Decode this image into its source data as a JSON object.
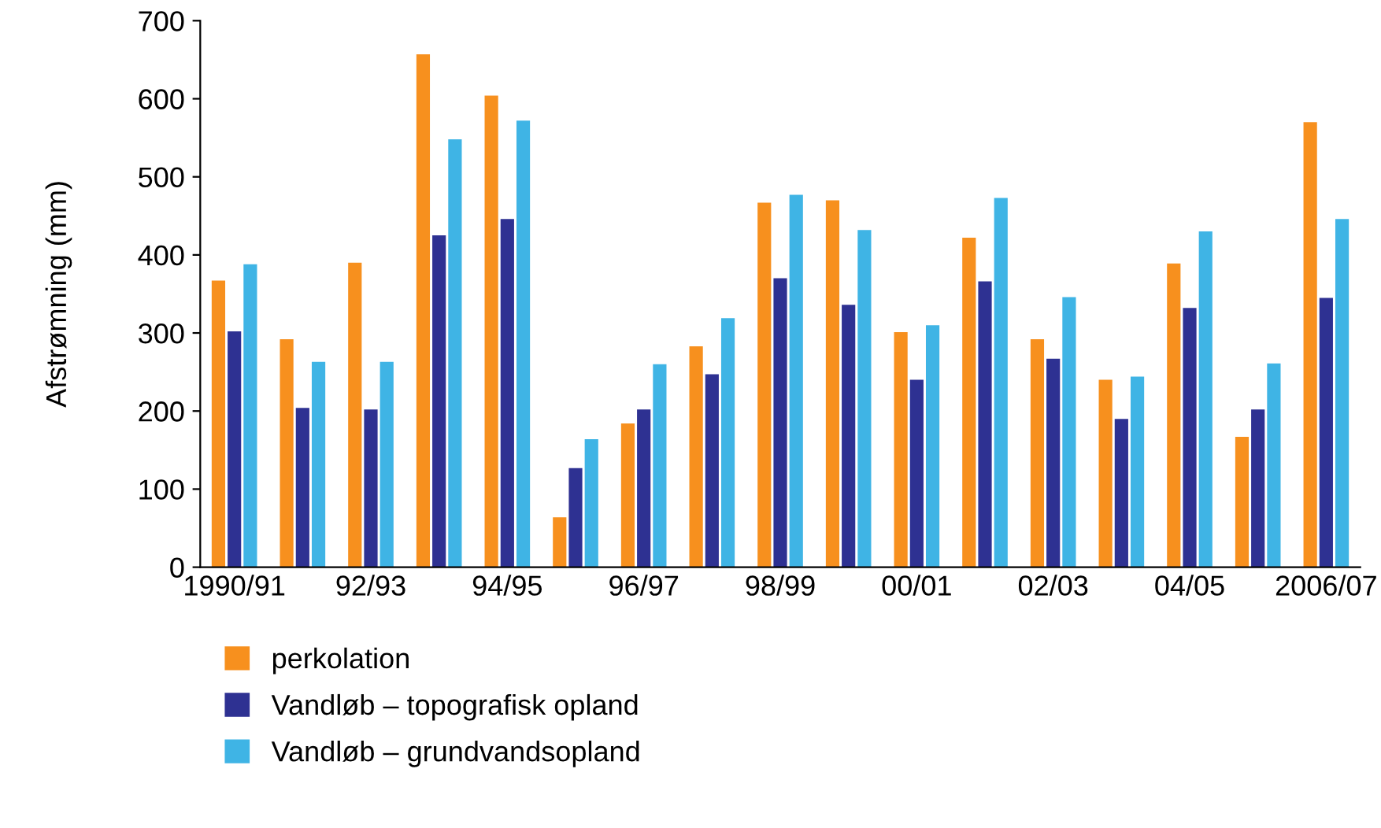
{
  "chart_data": {
    "type": "bar",
    "ylabel": "Afstrømning (mm)",
    "categories": [
      "1990/91",
      null,
      "92/93",
      null,
      "94/95",
      null,
      "96/97",
      null,
      "98/99",
      null,
      "00/01",
      null,
      "02/03",
      null,
      "04/05",
      null,
      "2006/07"
    ],
    "series": [
      {
        "name": "perkolation",
        "color": "#f7901e",
        "values": [
          367,
          292,
          390,
          657,
          604,
          64,
          184,
          283,
          467,
          470,
          301,
          422,
          292,
          240,
          389,
          167,
          570
        ]
      },
      {
        "name": "Vandløb – topografisk opland",
        "color": "#2e3192",
        "values": [
          302,
          204,
          202,
          425,
          446,
          127,
          202,
          247,
          370,
          336,
          240,
          366,
          267,
          190,
          332,
          202,
          345
        ]
      },
      {
        "name": "Vandløb – grundvandsopland",
        "color": "#3fb4e5",
        "values": [
          388,
          263,
          263,
          548,
          572,
          164,
          260,
          319,
          477,
          432,
          310,
          473,
          346,
          244,
          430,
          261,
          446
        ]
      }
    ],
    "ylim": [
      0,
      700
    ],
    "yticks": [
      0,
      100,
      200,
      300,
      400,
      500,
      600,
      700
    ],
    "legend": "bottom left",
    "grid": false
  }
}
